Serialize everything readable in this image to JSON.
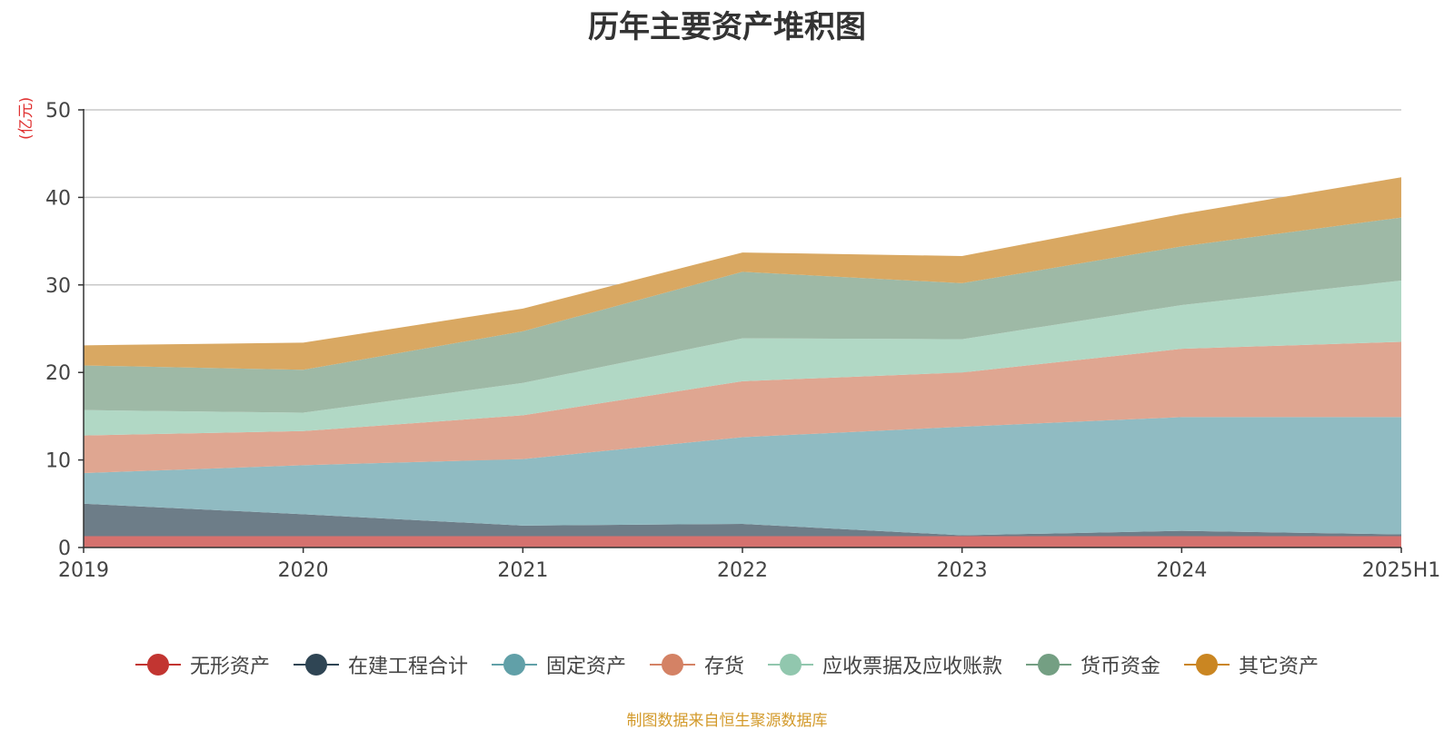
{
  "title": "历年主要资产堆积图",
  "unit_label": "(亿元)",
  "source_note": "制图数据来自恒生聚源数据库",
  "chart_data": {
    "type": "area",
    "stacked": true,
    "title": "历年主要资产堆积图",
    "ylabel": "(亿元)",
    "xlabel": "",
    "x": [
      "2019",
      "2020",
      "2021",
      "2022",
      "2023",
      "2024",
      "2025H1"
    ],
    "ylim": [
      0,
      50
    ],
    "yticks": [
      0,
      10,
      20,
      30,
      40,
      50
    ],
    "grid": true,
    "legend_position": "bottom",
    "series": [
      {
        "name": "无形资产",
        "color": "#c23531",
        "fill": "#d5716e",
        "values": [
          1.3,
          1.3,
          1.3,
          1.3,
          1.3,
          1.3,
          1.3
        ]
      },
      {
        "name": "在建工程合计",
        "color": "#2f4554",
        "fill": "#6d7d88",
        "values": [
          3.7,
          2.5,
          1.2,
          1.4,
          0.1,
          0.6,
          0.2
        ]
      },
      {
        "name": "固定资产",
        "color": "#61a0a8",
        "fill": "#90bbc2",
        "values": [
          3.5,
          5.6,
          7.6,
          9.9,
          12.4,
          13.0,
          13.4
        ]
      },
      {
        "name": "存货",
        "color": "#d48265",
        "fill": "#dfa691",
        "values": [
          4.3,
          3.9,
          5.0,
          6.4,
          6.2,
          7.8,
          8.6
        ]
      },
      {
        "name": "应收票据及应收账款",
        "color": "#91c7ae",
        "fill": "#b1d8c5",
        "values": [
          2.9,
          2.1,
          3.7,
          4.9,
          3.8,
          5.0,
          7.0
        ]
      },
      {
        "name": "货币资金",
        "color": "#749f83",
        "fill": "#9eb9a6",
        "values": [
          5.1,
          4.9,
          5.9,
          7.6,
          6.4,
          6.7,
          7.2
        ]
      },
      {
        "name": "其它资产",
        "color": "#ca8622",
        "fill": "#d9a862",
        "values": [
          2.3,
          3.1,
          2.6,
          2.2,
          3.1,
          3.7,
          4.6
        ]
      }
    ]
  }
}
